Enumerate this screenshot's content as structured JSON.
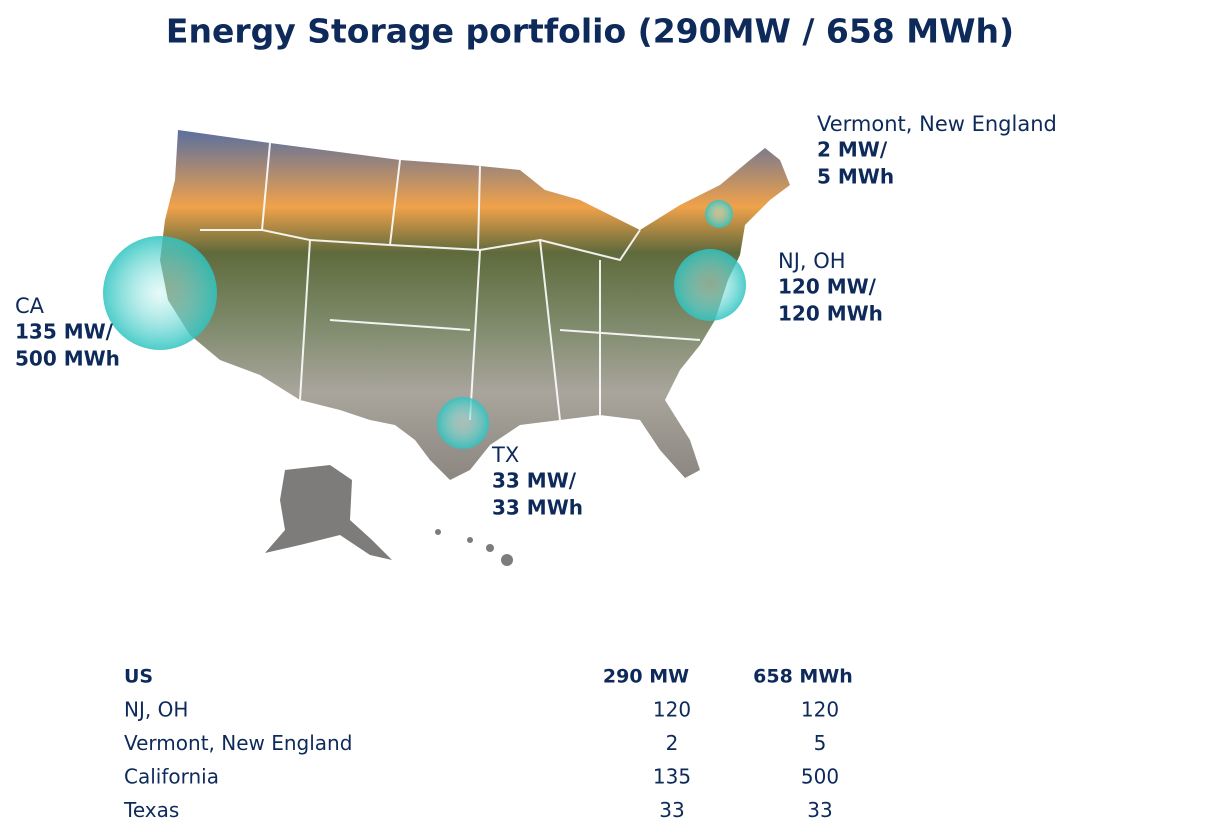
{
  "title": "Energy Storage portfolio (290MW / 658 MWh)",
  "callouts": [
    {
      "label": "Vermont, New England",
      "power": "2 MW/",
      "energy": "5 MWh"
    },
    {
      "label": "NJ, OH",
      "power": "120 MW/",
      "energy": "120 MWh"
    },
    {
      "label": "CA",
      "power": "135 MW/",
      "energy": "500 MWh"
    },
    {
      "label": "TX",
      "power": "33 MW/",
      "energy": "33 MWh"
    }
  ],
  "table": {
    "header": [
      "US",
      "290 MW",
      "658 MWh"
    ],
    "rows": [
      [
        "NJ, OH",
        120,
        120
      ],
      [
        "Vermont, New England",
        2,
        5
      ],
      [
        "California",
        135,
        500
      ],
      [
        "Texas",
        33,
        33
      ]
    ]
  }
}
